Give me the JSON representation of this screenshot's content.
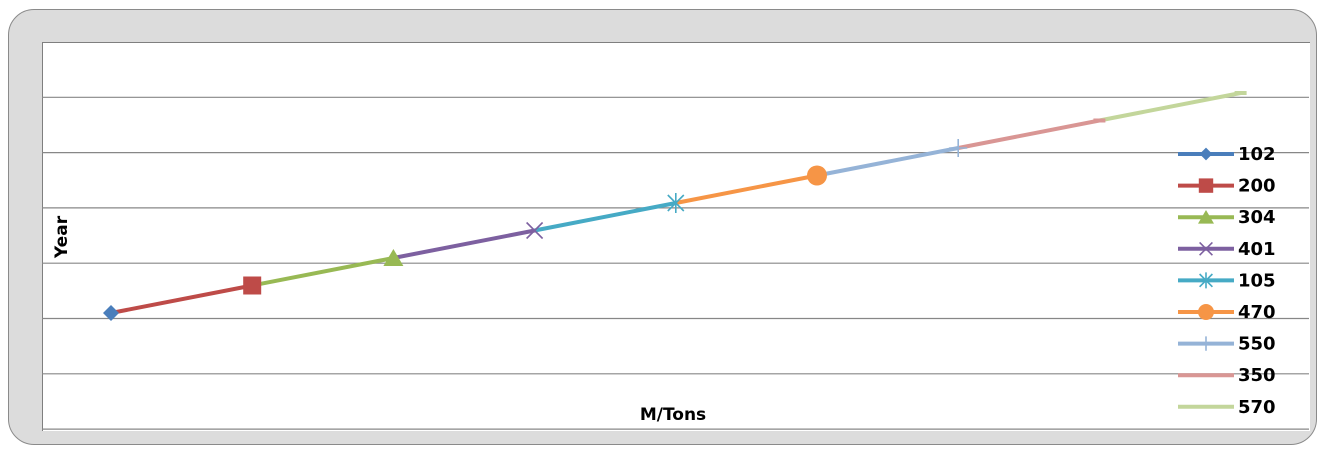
{
  "chart_data": {
    "type": "line",
    "title": "",
    "xlabel": "M/Tons",
    "ylabel": "Year",
    "grid": true,
    "legend_position": "right",
    "y_gridlines": 7,
    "series": [
      {
        "name": "102",
        "color": "#4a7ebb",
        "marker": "diamond",
        "x": 1,
        "y": 1.7
      },
      {
        "name": "200",
        "color": "#be4b48",
        "marker": "square",
        "x": 2,
        "y": 2.2
      },
      {
        "name": "304",
        "color": "#98b954",
        "marker": "triangle",
        "x": 3,
        "y": 2.7
      },
      {
        "name": "401",
        "color": "#7d60a0",
        "marker": "x",
        "x": 4,
        "y": 3.2
      },
      {
        "name": "105",
        "color": "#46aac5",
        "marker": "star",
        "x": 5,
        "y": 3.7
      },
      {
        "name": "470",
        "color": "#f69546",
        "marker": "circle",
        "x": 6,
        "y": 4.2
      },
      {
        "name": "550",
        "color": "#95b3d7",
        "marker": "plus",
        "x": 7,
        "y": 4.7
      },
      {
        "name": "350",
        "color": "#d99694",
        "marker": "dash",
        "x": 8,
        "y": 5.2
      },
      {
        "name": "570",
        "color": "#c3d69b",
        "marker": "dash",
        "x": 9,
        "y": 5.7
      }
    ]
  }
}
